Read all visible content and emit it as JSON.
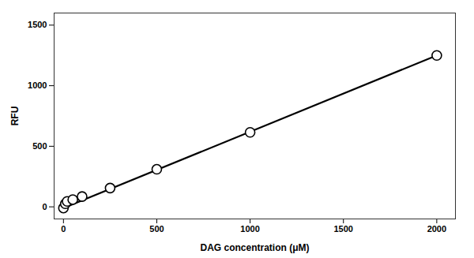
{
  "chart_data": {
    "type": "scatter",
    "xlabel": "DAG concentration (μM)",
    "ylabel": "RFU",
    "xlim": [
      -50,
      2100
    ],
    "ylim": [
      -100,
      1600
    ],
    "xticks": [
      0,
      500,
      1000,
      1500,
      2000
    ],
    "yticks": [
      0,
      500,
      1000,
      1500
    ],
    "series": [
      {
        "type": "line",
        "color": "#000000",
        "x": [
          0,
          2000
        ],
        "values": [
          -10,
          1250
        ]
      },
      {
        "type": "scatter",
        "color": "#000000",
        "marker": "open circle",
        "x": [
          0,
          10,
          20,
          50,
          100,
          250,
          500,
          1000,
          2000
        ],
        "values": [
          -10,
          25,
          45,
          60,
          85,
          155,
          310,
          615,
          1250
        ]
      }
    ]
  }
}
